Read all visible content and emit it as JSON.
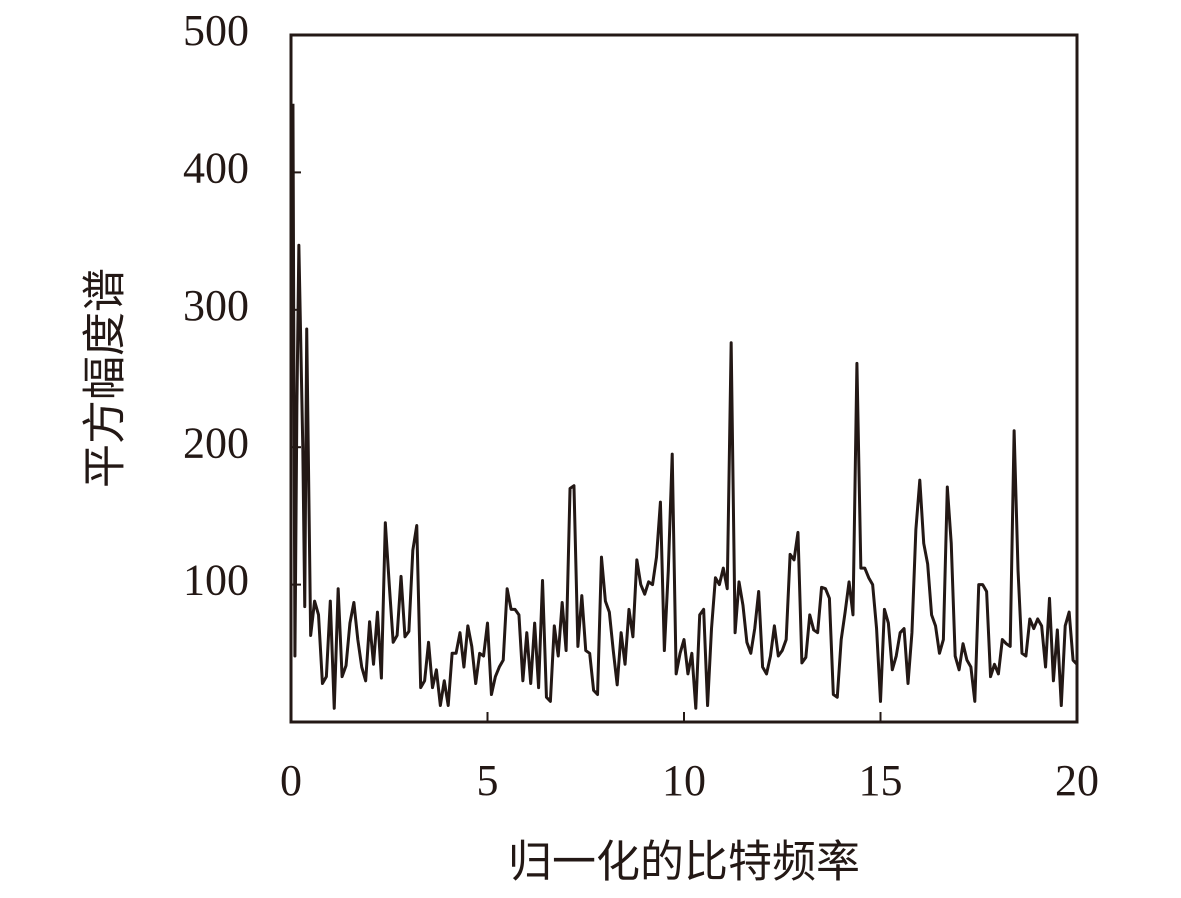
{
  "chart_data": {
    "type": "line",
    "xlabel": "归一化的比特频率",
    "ylabel": "平方幅度谱",
    "xlim": [
      0,
      20
    ],
    "ylim": [
      0,
      500
    ],
    "xticks": [
      0,
      5,
      10,
      15,
      20
    ],
    "yticks": [
      100,
      200,
      300,
      400,
      500
    ],
    "color": "#231815",
    "x": [
      0.05,
      0.1,
      0.15,
      0.2,
      0.3,
      0.35,
      0.4,
      0.5,
      0.6,
      0.7,
      0.8,
      0.9,
      1.0,
      1.1,
      1.2,
      1.3,
      1.4,
      1.5,
      1.6,
      1.7,
      1.8,
      1.9,
      2.0,
      2.1,
      2.2,
      2.3,
      2.4,
      2.5,
      2.6,
      2.7,
      2.8,
      2.9,
      3.0,
      3.1,
      3.2,
      3.3,
      3.4,
      3.5,
      3.6,
      3.7,
      3.8,
      3.9,
      4.0,
      4.1,
      4.2,
      4.3,
      4.4,
      4.5,
      4.6,
      4.7,
      4.8,
      4.9,
      5.0,
      5.1,
      5.2,
      5.3,
      5.4,
      5.5,
      5.6,
      5.7,
      5.8,
      5.9,
      6.0,
      6.1,
      6.2,
      6.3,
      6.4,
      6.5,
      6.6,
      6.7,
      6.8,
      6.9,
      7.0,
      7.1,
      7.2,
      7.3,
      7.4,
      7.5,
      7.6,
      7.7,
      7.8,
      7.9,
      8.0,
      8.1,
      8.2,
      8.3,
      8.4,
      8.5,
      8.6,
      8.7,
      8.8,
      8.9,
      9.0,
      9.1,
      9.2,
      9.3,
      9.4,
      9.5,
      9.6,
      9.7,
      9.8,
      9.9,
      10.0,
      10.1,
      10.2,
      10.3,
      10.4,
      10.5,
      10.6,
      10.7,
      10.8,
      10.9,
      11.0,
      11.1,
      11.2,
      11.3,
      11.4,
      11.5,
      11.6,
      11.7,
      11.8,
      11.9,
      12.0,
      12.1,
      12.2,
      12.3,
      12.4,
      12.5,
      12.6,
      12.7,
      12.8,
      12.9,
      13.0,
      13.1,
      13.2,
      13.3,
      13.4,
      13.5,
      13.6,
      13.7,
      13.8,
      13.9,
      14.0,
      14.1,
      14.2,
      14.3,
      14.4,
      14.5,
      14.6,
      14.7,
      14.8,
      14.9,
      15.0,
      15.1,
      15.2,
      15.3,
      15.4,
      15.5,
      15.6,
      15.7,
      15.8,
      15.9,
      16.0,
      16.1,
      16.2,
      16.3,
      16.4,
      16.5,
      16.6,
      16.7,
      16.8,
      16.9,
      17.0,
      17.1,
      17.2,
      17.3,
      17.4,
      17.5,
      17.6,
      17.7,
      17.8,
      17.9,
      18.0,
      18.1,
      18.2,
      18.3,
      18.4,
      18.5,
      18.6,
      18.7,
      18.8,
      18.9,
      19.0,
      19.1,
      19.2,
      19.3,
      19.4,
      19.5,
      19.6,
      19.7,
      19.8,
      19.9,
      20.0
    ],
    "values": [
      450,
      48,
      230,
      347,
      200,
      84,
      286,
      63,
      88,
      78,
      28,
      33,
      88,
      10,
      97,
      33,
      41,
      72,
      87,
      60,
      40,
      30,
      73,
      42,
      80,
      32,
      145,
      100,
      58,
      63,
      106,
      62,
      66,
      125,
      143,
      25,
      30,
      58,
      25,
      38,
      12,
      30,
      12,
      50,
      50,
      65,
      40,
      70,
      55,
      28,
      50,
      48,
      72,
      20,
      33,
      40,
      45,
      97,
      82,
      82,
      78,
      30,
      65,
      28,
      72,
      25,
      103,
      18,
      15,
      70,
      48,
      87,
      52,
      170,
      172,
      55,
      92,
      52,
      50,
      23,
      20,
      120,
      88,
      80,
      52,
      27,
      65,
      42,
      82,
      62,
      118,
      100,
      93,
      102,
      100,
      120,
      160,
      52,
      110,
      195,
      35,
      50,
      60,
      35,
      50,
      10,
      78,
      82,
      12,
      68,
      105,
      100,
      112,
      97,
      276,
      65,
      102,
      85,
      58,
      50,
      68,
      95,
      40,
      35,
      48,
      70,
      48,
      52,
      60,
      122,
      118,
      138,
      43,
      47,
      78,
      67,
      65,
      98,
      97,
      90,
      20,
      18,
      60,
      80,
      102,
      78,
      261,
      112,
      112,
      105,
      100,
      68,
      15,
      82,
      72,
      38,
      48,
      65,
      68,
      28,
      65,
      140,
      176,
      130,
      115,
      78,
      70,
      50,
      60,
      171,
      130,
      48,
      38,
      57,
      45,
      40,
      15,
      100,
      100,
      95,
      33,
      42,
      35,
      60,
      57,
      55,
      212,
      110,
      50,
      48,
      75,
      68,
      75,
      70,
      40,
      90,
      30,
      67,
      12,
      70,
      80,
      45,
      42
    ]
  }
}
